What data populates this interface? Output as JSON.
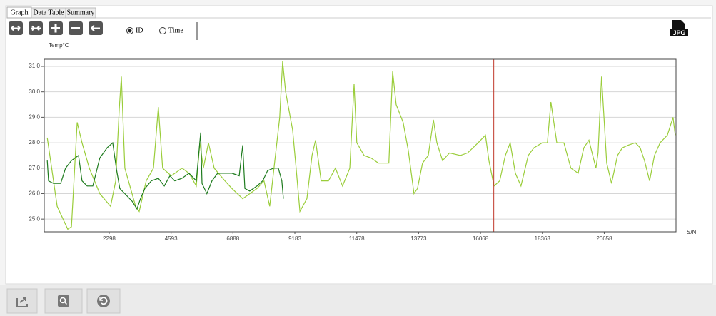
{
  "tabs": [
    "Graph",
    "Data Table",
    "Summary"
  ],
  "toolbar": {
    "radios": [
      "ID",
      "Time"
    ],
    "selected_radio": 0,
    "export_label": "JPG"
  },
  "chart_data": {
    "type": "line",
    "y_label": "Temp°C",
    "x_label": "S/N",
    "xlim": [
      -110,
      23320
    ],
    "ylim": [
      24.5,
      31.28
    ],
    "xticks": [
      2298,
      4593,
      6888,
      9183,
      11478,
      13773,
      16068,
      18363,
      20658
    ],
    "yticks": [
      {
        "value": 25,
        "label": "25.0"
      },
      {
        "value": 26,
        "label": "26.0"
      },
      {
        "value": 27,
        "label": "27.0"
      },
      {
        "value": 28,
        "label": "28.0"
      },
      {
        "value": 29,
        "label": "29.0"
      },
      {
        "value": 30,
        "label": "30.0"
      },
      {
        "value": 31,
        "label": "31.0"
      }
    ],
    "grid": true,
    "cursor_x": 16560,
    "cursor_color": "#c0392b",
    "series": [
      {
        "color": "#9acd3a",
        "x": [
          0,
          370,
          760,
          900,
          1110,
          1290,
          1560,
          1950,
          2350,
          2540,
          2670,
          2750,
          2880,
          3280,
          3410,
          3670,
          3940,
          4120,
          4280,
          4600,
          5000,
          5260,
          5530,
          5660,
          5790,
          5980,
          6190,
          6590,
          6850,
          7250,
          7780,
          8040,
          8250,
          8440,
          8620,
          8730,
          8840,
          9100,
          9230,
          9370,
          9630,
          9820,
          9950,
          10160,
          10430,
          10690,
          10950,
          11220,
          11380,
          11480,
          11750,
          12010,
          12280,
          12670,
          12810,
          12940,
          13200,
          13390,
          13600,
          13730,
          13920,
          14130,
          14320,
          14450,
          14660,
          14920,
          15320,
          15590,
          15980,
          16250,
          16380,
          16570,
          16780,
          16990,
          17170,
          17360,
          17570,
          17840,
          18050,
          18360,
          18550,
          18680,
          18900,
          19160,
          19420,
          19690,
          19900,
          20090,
          20350,
          20430,
          20560,
          20750,
          20930,
          21150,
          21330,
          21540,
          21810,
          21990,
          22150,
          22340,
          22520,
          22730,
          23000,
          23210,
          23290
        ],
        "values": [
          28.2,
          25.5,
          24.6,
          24.7,
          28.8,
          28.0,
          27.0,
          26.0,
          25.5,
          26.5,
          29.3,
          30.6,
          27.0,
          25.5,
          25.3,
          26.5,
          27.0,
          29.4,
          27.0,
          26.7,
          27.0,
          26.8,
          26.3,
          28.0,
          27.0,
          28.0,
          27.0,
          26.5,
          26.2,
          25.8,
          26.2,
          26.5,
          25.5,
          27.3,
          29.0,
          31.2,
          30.0,
          28.5,
          27.0,
          25.3,
          25.8,
          27.5,
          28.1,
          26.5,
          26.5,
          27.0,
          26.3,
          27.0,
          30.3,
          28.0,
          27.5,
          27.4,
          27.2,
          27.2,
          30.8,
          29.5,
          28.8,
          27.7,
          26.0,
          26.2,
          27.2,
          27.5,
          28.9,
          28.0,
          27.3,
          27.6,
          27.5,
          27.6,
          28.0,
          28.3,
          27.3,
          26.3,
          26.5,
          27.5,
          28.0,
          26.8,
          26.3,
          27.5,
          27.8,
          28.0,
          28.0,
          29.6,
          28.0,
          28.0,
          27.0,
          26.8,
          27.8,
          28.1,
          27.0,
          27.6,
          30.6,
          27.2,
          26.4,
          27.5,
          27.8,
          27.9,
          28.0,
          27.8,
          27.3,
          26.5,
          27.5,
          28.0,
          28.3,
          29.0,
          28.3
        ]
      },
      {
        "color": "#1e7b1e",
        "x": [
          0,
          50,
          230,
          500,
          680,
          900,
          1160,
          1290,
          1480,
          1690,
          1950,
          2220,
          2430,
          2560,
          2690,
          2880,
          3150,
          3330,
          3460,
          3620,
          3860,
          4120,
          4340,
          4550,
          4730,
          5000,
          5260,
          5530,
          5690,
          5740,
          5920,
          6110,
          6320,
          6590,
          6850,
          7120,
          7250,
          7330,
          7510,
          7780,
          7990,
          8170,
          8390,
          8570,
          8700,
          8760
        ],
        "values": [
          27.3,
          26.5,
          26.4,
          26.4,
          27.0,
          27.3,
          27.5,
          26.5,
          26.3,
          26.3,
          27.4,
          27.8,
          28.0,
          27.0,
          26.2,
          26.0,
          25.7,
          25.4,
          25.8,
          26.2,
          26.5,
          26.6,
          26.3,
          26.7,
          26.5,
          26.6,
          26.8,
          26.5,
          28.4,
          26.4,
          26.0,
          26.5,
          26.8,
          26.8,
          26.8,
          26.7,
          27.9,
          26.2,
          26.1,
          26.3,
          26.5,
          26.9,
          27.0,
          27.0,
          26.5,
          25.8
        ]
      }
    ]
  }
}
